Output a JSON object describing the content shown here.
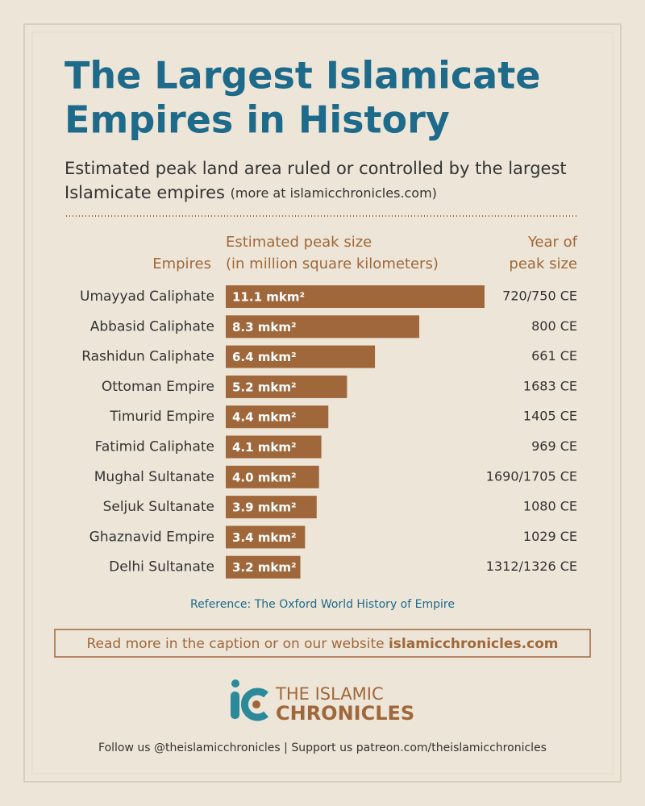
{
  "chart_data": {
    "type": "bar",
    "title_lines": [
      "The Largest Islamicate",
      "Empires in History"
    ],
    "subtitle_lines": [
      "Estimated peak land area ruled or controlled by the largest",
      "Islamicate empires"
    ],
    "subtitle_note": "(more at islamicchronicles.com)",
    "category_header": "Empires",
    "value_header_lines": [
      "Estimated peak size",
      "(in million square kilometers)"
    ],
    "year_header_lines": [
      "Year of",
      "peak size"
    ],
    "categories": [
      "Umayyad Caliphate",
      "Abbasid Caliphate",
      "Rashidun Caliphate",
      "Ottoman Empire",
      "Timurid Empire",
      "Fatimid Caliphate",
      "Mughal Sultanate",
      "Seljuk Sultanate",
      "Ghaznavid Empire",
      "Delhi Sultanate"
    ],
    "values": [
      11.1,
      8.3,
      6.4,
      5.2,
      4.4,
      4.1,
      4.0,
      3.9,
      3.4,
      3.2
    ],
    "value_labels": [
      "11.1 mkm²",
      "8.3 mkm²",
      "6.4 mkm²",
      "5.2 mkm²",
      "4.4 mkm²",
      "4.1 mkm²",
      "4.0 mkm²",
      "3.9 mkm²",
      "3.4 mkm²",
      "3.2 mkm²"
    ],
    "peak_years": [
      "720/750 CE",
      "800 CE",
      "661 CE",
      "1683 CE",
      "1405 CE",
      "969 CE",
      "1690/1705 CE",
      "1080 CE",
      "1029 CE",
      "1312/1326 CE"
    ],
    "color": "#a0673a",
    "reference": "Reference: The Oxford World History of Empire"
  },
  "cta": {
    "text": "Read more in the caption or on our website",
    "link": "islamicchronicles.com"
  },
  "logo": {
    "line1": "THE ISLAMIC",
    "line2": "CHRONICLES"
  },
  "footer": "Follow us @theislamicchronicles | Support us patreon.com/theislamicchronicles"
}
